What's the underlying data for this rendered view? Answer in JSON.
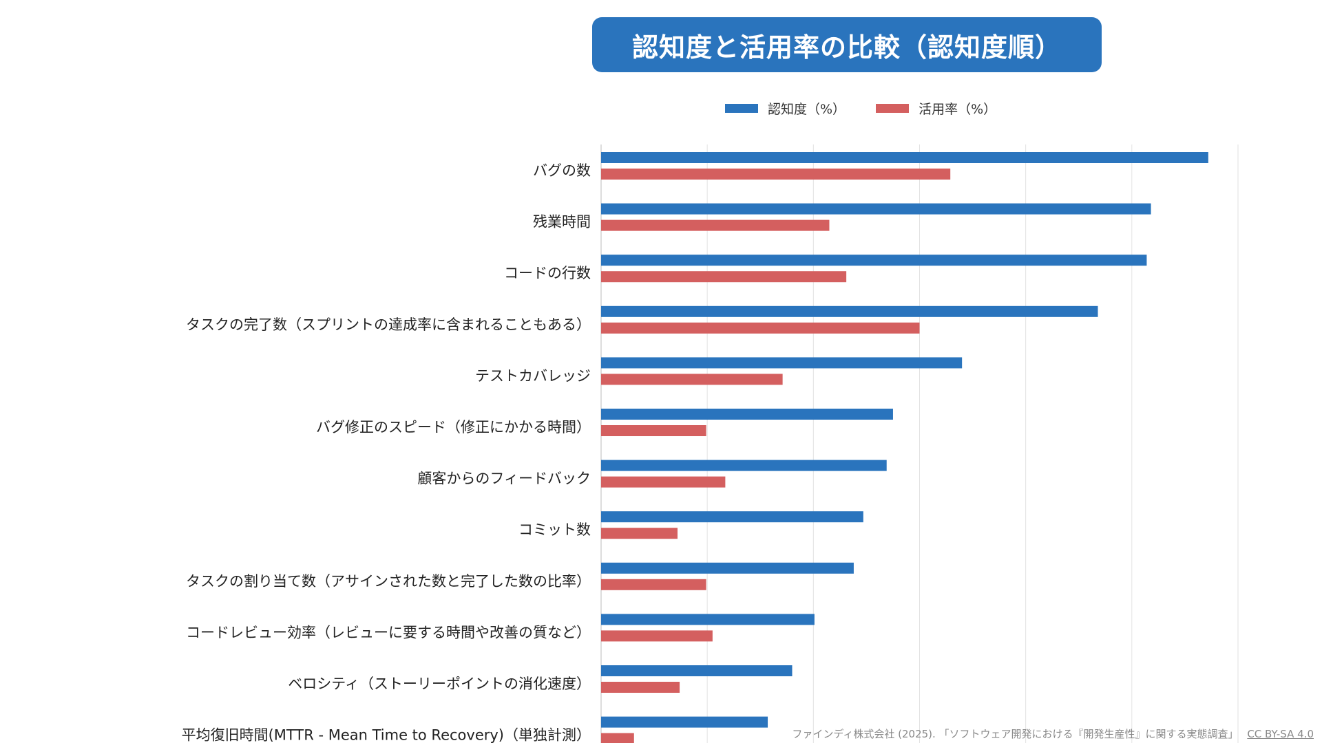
{
  "chart_data": {
    "type": "bar",
    "orientation": "horizontal",
    "title": "認知度と活用率の比較（認知度順）",
    "categories": [
      "バグの数",
      "残業時間",
      "コードの行数",
      "タスクの完了数（スプリントの達成率に含まれることもある）",
      "テストカバレッジ",
      "バグ修正のスピード（修正にかかる時間）",
      "顧客からのフィードバック",
      "コミット数",
      "タスクの割り当て数（アサインされた数と完了した数の比率）",
      "コードレビュー効率（レビューに要する時間や改善の質など）",
      "ベロシティ（ストーリーポイントの消化速度）",
      "平均復旧時間(MTTR - Mean Time to Recovery)（単独計測）"
    ],
    "series": [
      {
        "name": "認知度（%）",
        "color": "#2a74bd",
        "values": [
          57.2,
          51.8,
          51.4,
          46.8,
          34.0,
          27.5,
          26.9,
          24.7,
          23.8,
          20.1,
          18.0,
          15.7
        ]
      },
      {
        "name": "活用率（%）",
        "color": "#d45f5f",
        "values": [
          32.9,
          21.5,
          23.1,
          30.0,
          17.1,
          9.9,
          11.7,
          7.2,
          9.9,
          10.5,
          7.4,
          3.1
        ]
      }
    ],
    "xlim": [
      0,
      60
    ],
    "x_gridlines": [
      0,
      10,
      20,
      30,
      40,
      50,
      60
    ],
    "grid": true,
    "legend_position": "top-center"
  },
  "source": {
    "text": "ファインディ株式会社 (2025). 「ソフトウェア開発における『開発生産性』に関する実態調査」",
    "license": "CC BY-SA 4.0"
  }
}
